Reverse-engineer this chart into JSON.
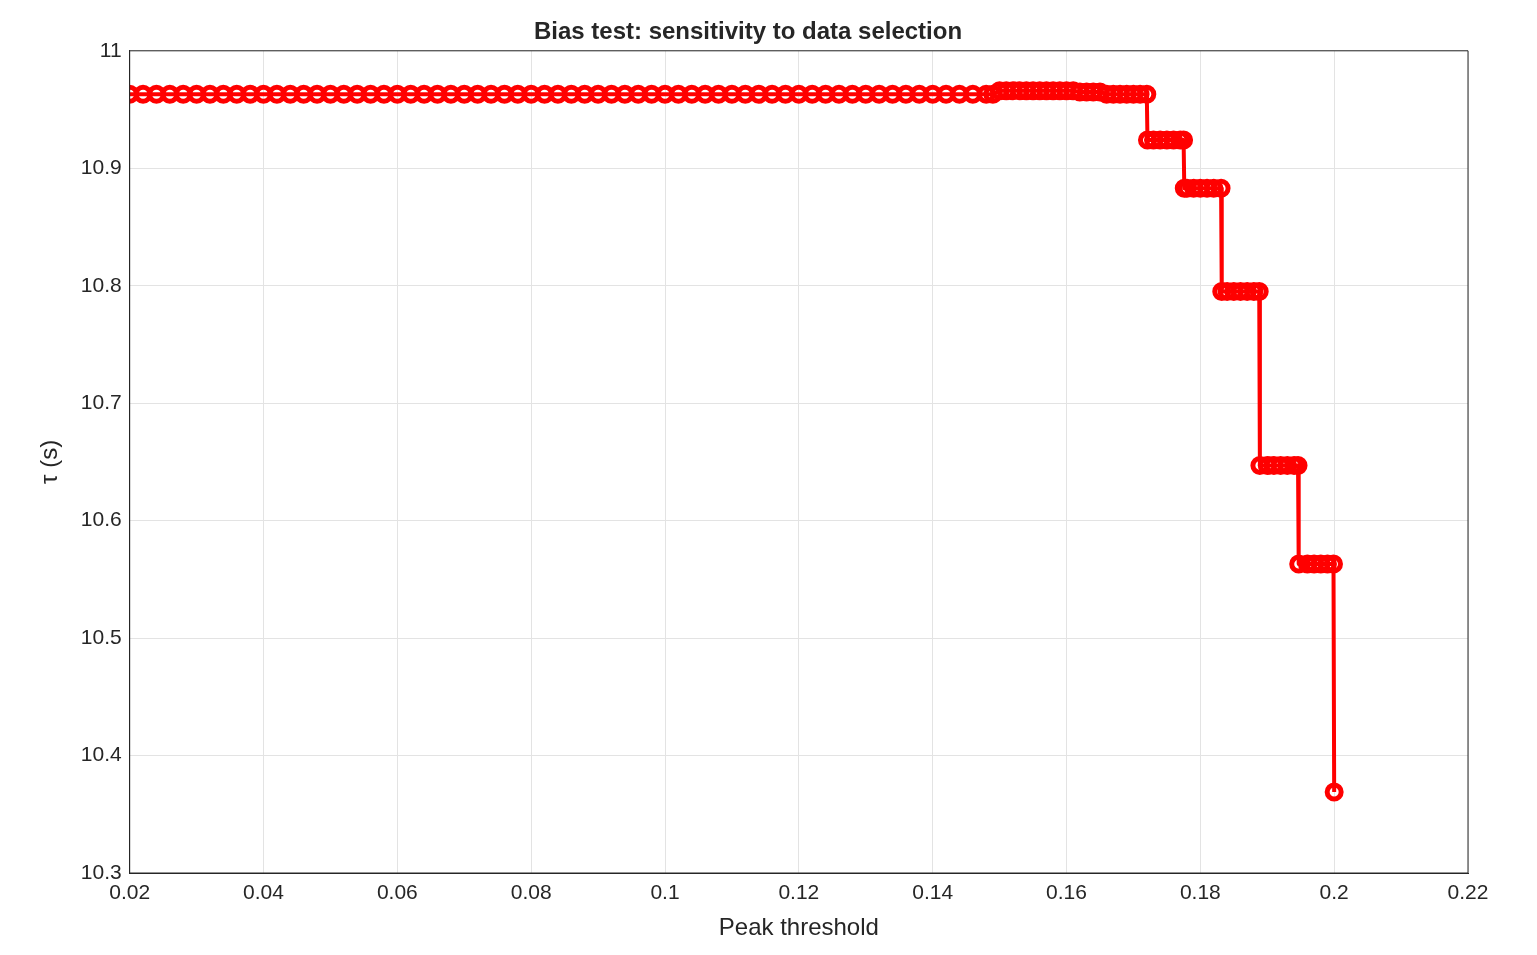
{
  "chart_data": {
    "type": "line",
    "title": "Bias test: sensitivity to data selection",
    "xlabel": "Peak threshold",
    "ylabel": "τ (s)",
    "xlim": [
      0.02,
      0.22
    ],
    "xticks": [
      0.02,
      0.04,
      0.06,
      0.08,
      0.1,
      0.12,
      0.14,
      0.16,
      0.18,
      0.2,
      0.22
    ],
    "ylim": [
      10.3,
      11
    ],
    "yticks": [
      10.3,
      10.4,
      10.5,
      10.6,
      10.7,
      10.8,
      10.9,
      11
    ],
    "grid": true,
    "marker": "circle",
    "line_style": "solid",
    "series": [
      {
        "color": "#ff0000",
        "x": [
          0.02,
          0.022,
          0.024,
          0.026,
          0.028,
          0.03,
          0.032,
          0.034,
          0.036,
          0.038,
          0.04,
          0.042,
          0.044,
          0.046,
          0.048,
          0.05,
          0.052,
          0.054,
          0.056,
          0.058,
          0.06,
          0.062,
          0.064,
          0.066,
          0.068,
          0.07,
          0.072,
          0.074,
          0.076,
          0.078,
          0.08,
          0.082,
          0.084,
          0.086,
          0.088,
          0.09,
          0.092,
          0.094,
          0.096,
          0.098,
          0.1,
          0.102,
          0.104,
          0.106,
          0.108,
          0.11,
          0.112,
          0.114,
          0.116,
          0.118,
          0.12,
          0.122,
          0.124,
          0.126,
          0.128,
          0.13,
          0.132,
          0.134,
          0.136,
          0.138,
          0.14,
          0.142,
          0.144,
          0.146,
          0.148,
          0.149,
          0.15,
          0.151,
          0.152,
          0.153,
          0.154,
          0.155,
          0.156,
          0.157,
          0.158,
          0.159,
          0.16,
          0.161,
          0.162,
          0.163,
          0.164,
          0.165,
          0.166,
          0.167,
          0.168,
          0.169,
          0.17,
          0.171,
          0.172,
          0.1721,
          0.173,
          0.174,
          0.175,
          0.176,
          0.177,
          0.1775,
          0.1776,
          0.178,
          0.179,
          0.18,
          0.181,
          0.182,
          0.1831,
          0.1832,
          0.184,
          0.185,
          0.186,
          0.187,
          0.188,
          0.1888,
          0.1889,
          0.19,
          0.191,
          0.192,
          0.193,
          0.194,
          0.1946,
          0.1947,
          0.196,
          0.197,
          0.198,
          0.199,
          0.1999,
          0.2
        ],
        "values": [
          10.963,
          10.963,
          10.963,
          10.963,
          10.963,
          10.963,
          10.963,
          10.963,
          10.963,
          10.963,
          10.963,
          10.963,
          10.963,
          10.963,
          10.963,
          10.963,
          10.963,
          10.963,
          10.963,
          10.963,
          10.963,
          10.963,
          10.963,
          10.963,
          10.963,
          10.963,
          10.963,
          10.963,
          10.963,
          10.963,
          10.963,
          10.963,
          10.963,
          10.963,
          10.963,
          10.963,
          10.963,
          10.963,
          10.963,
          10.963,
          10.963,
          10.963,
          10.963,
          10.963,
          10.963,
          10.963,
          10.963,
          10.963,
          10.963,
          10.963,
          10.963,
          10.963,
          10.963,
          10.963,
          10.963,
          10.963,
          10.963,
          10.963,
          10.963,
          10.963,
          10.963,
          10.963,
          10.963,
          10.963,
          10.963,
          10.963,
          10.966,
          10.966,
          10.966,
          10.966,
          10.966,
          10.966,
          10.966,
          10.966,
          10.966,
          10.966,
          10.966,
          10.966,
          10.965,
          10.965,
          10.965,
          10.965,
          10.963,
          10.963,
          10.963,
          10.963,
          10.963,
          10.963,
          10.963,
          10.924,
          10.924,
          10.924,
          10.924,
          10.924,
          10.924,
          10.924,
          10.883,
          10.883,
          10.883,
          10.883,
          10.883,
          10.883,
          10.883,
          10.795,
          10.795,
          10.795,
          10.795,
          10.795,
          10.795,
          10.795,
          10.647,
          10.647,
          10.647,
          10.647,
          10.647,
          10.647,
          10.647,
          10.563,
          10.563,
          10.563,
          10.563,
          10.563,
          10.563,
          10.369
        ]
      }
    ]
  }
}
